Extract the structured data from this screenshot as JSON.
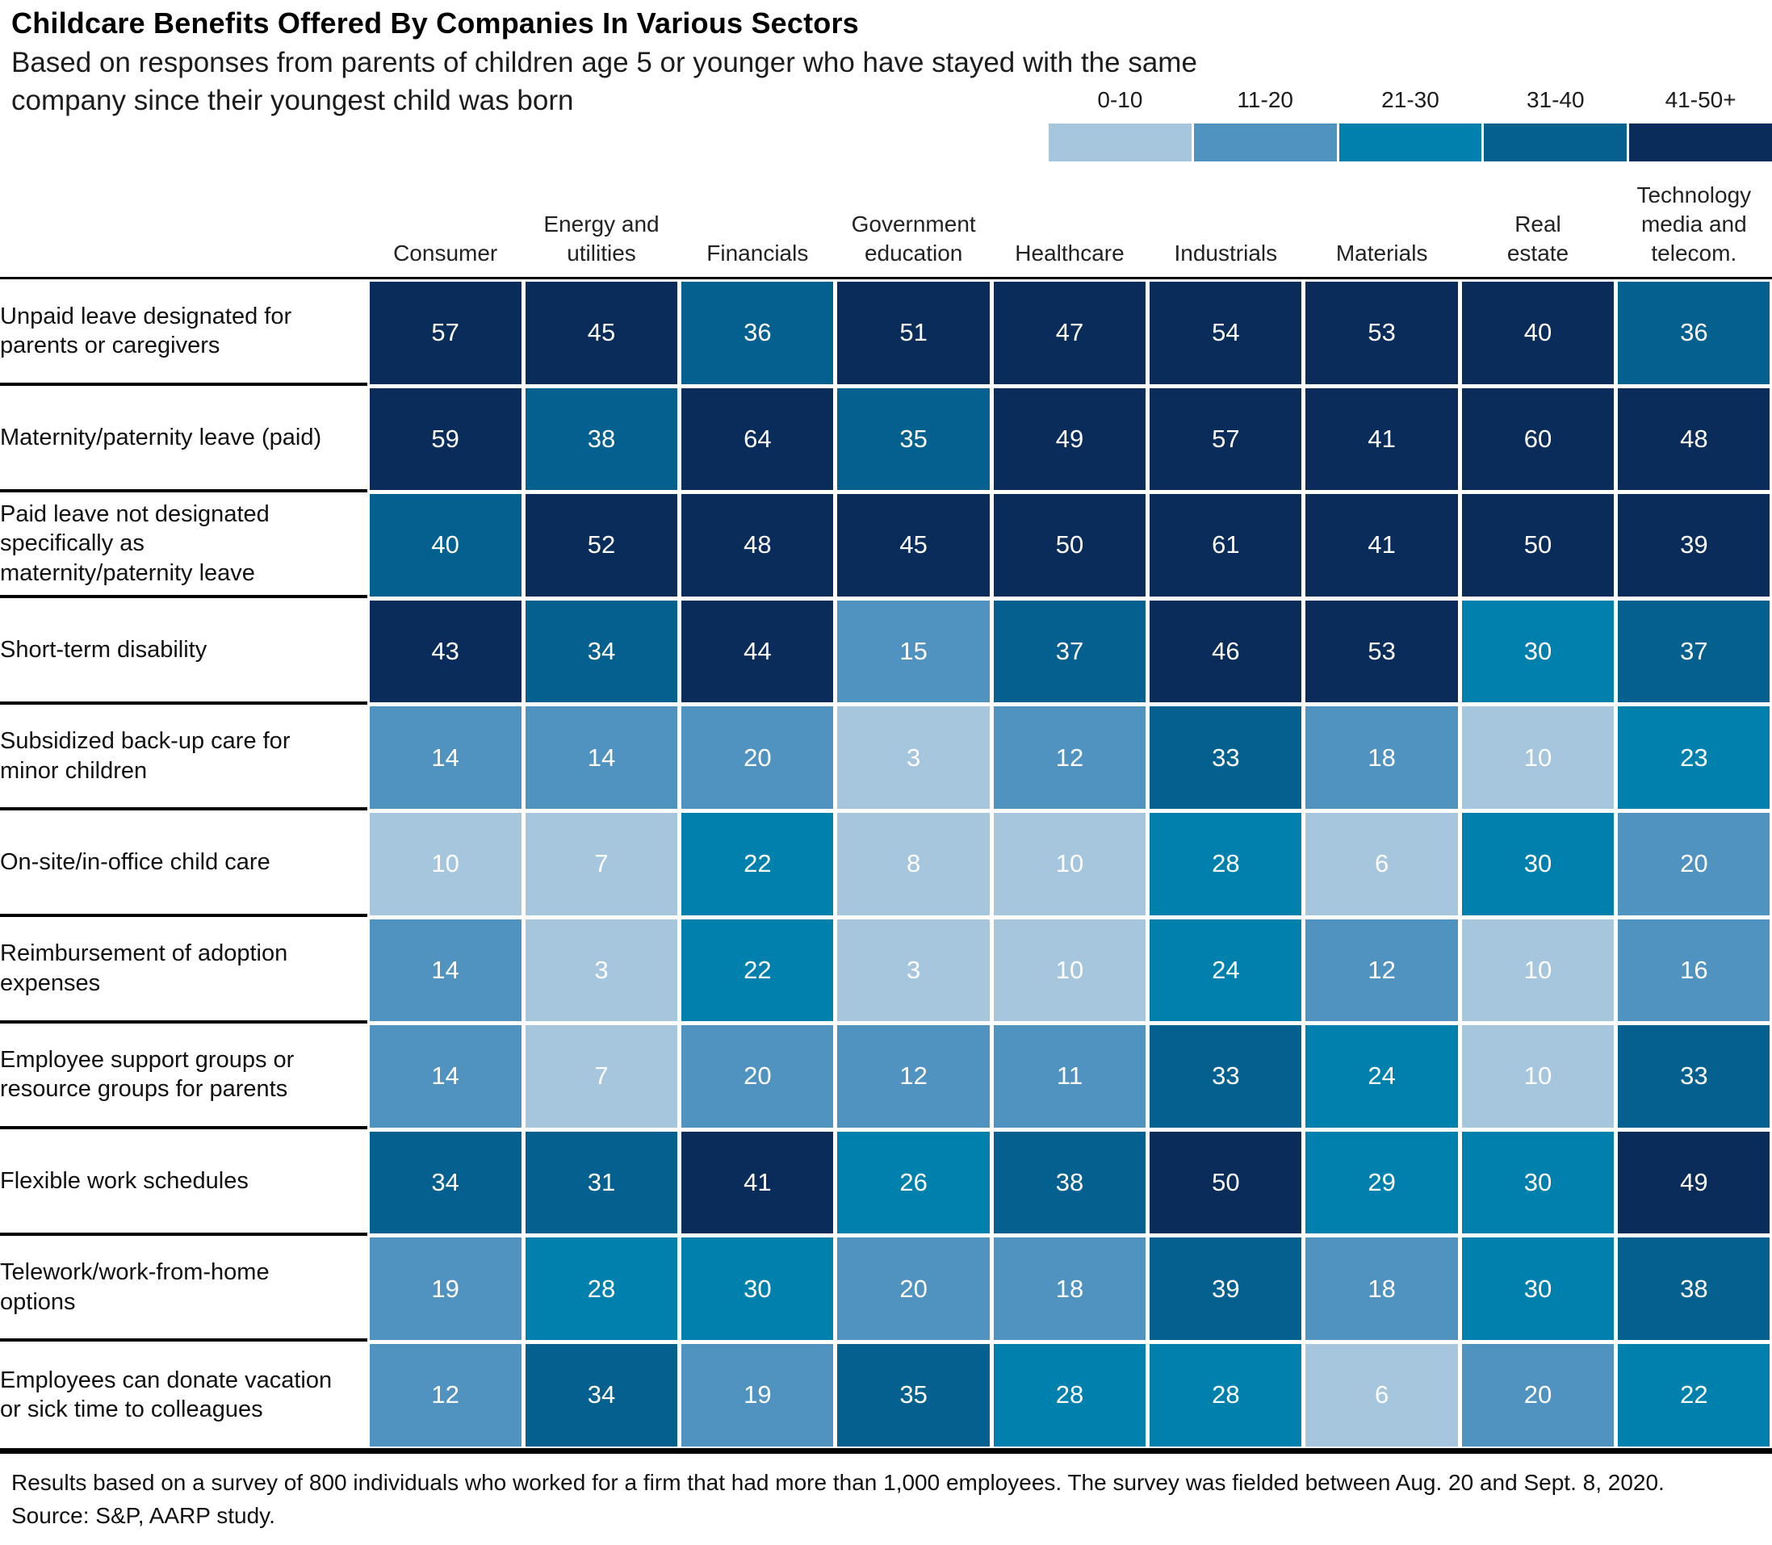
{
  "chart_data": {
    "type": "heatmap",
    "title": "Childcare Benefits Offered By Companies In Various Sectors",
    "subtitle": "Based on responses from parents of children age 5 or younger who have stayed with the same\ncompany since their youngest child was born",
    "columns": [
      "Consumer",
      "Energy and\nutilities",
      "Financials",
      "Government\neducation",
      "Healthcare",
      "Industrials",
      "Materials",
      "Real\nestate",
      "Technology\nmedia and\ntelecom."
    ],
    "rows": [
      {
        "label": "Unpaid leave designated for parents or caregivers",
        "values": [
          57,
          45,
          36,
          51,
          47,
          54,
          53,
          40,
          36
        ]
      },
      {
        "label": "Maternity/paternity leave (paid)",
        "values": [
          59,
          38,
          64,
          35,
          49,
          57,
          41,
          60,
          48
        ]
      },
      {
        "label": "Paid leave not designated specifically as maternity/paternity leave",
        "values": [
          40,
          52,
          48,
          45,
          50,
          61,
          41,
          50,
          39
        ]
      },
      {
        "label": "Short-term disability",
        "values": [
          43,
          34,
          44,
          15,
          37,
          46,
          53,
          30,
          37
        ]
      },
      {
        "label": "Subsidized back-up care for minor children",
        "values": [
          14,
          14,
          20,
          3,
          12,
          33,
          18,
          10,
          23
        ]
      },
      {
        "label": "On-site/in-office child care",
        "values": [
          10,
          7,
          22,
          8,
          10,
          28,
          6,
          30,
          20
        ]
      },
      {
        "label": "Reimbursement of adoption expenses",
        "values": [
          14,
          3,
          22,
          3,
          10,
          24,
          12,
          10,
          16
        ]
      },
      {
        "label": "Employee support groups or resource groups for parents",
        "values": [
          14,
          7,
          20,
          12,
          11,
          33,
          24,
          10,
          33
        ]
      },
      {
        "label": "Flexible work schedules",
        "values": [
          34,
          31,
          41,
          26,
          38,
          50,
          29,
          30,
          49
        ]
      },
      {
        "label": "Telework/work-from-home options",
        "values": [
          19,
          28,
          30,
          20,
          18,
          39,
          18,
          30,
          38
        ]
      },
      {
        "label": "Employees can donate vacation or sick time to colleagues",
        "values": [
          12,
          34,
          19,
          35,
          28,
          28,
          6,
          20,
          22
        ]
      }
    ],
    "legend": {
      "position": "top-right",
      "bucket_labels": [
        "0-10",
        "11-20",
        "21-30",
        "31-40",
        "41-50+"
      ],
      "bucket_colors": [
        "#a5c6dd",
        "#5193c0",
        "#0081ad",
        "#04608f",
        "#092c5a"
      ],
      "thresholds": [
        10,
        20,
        30,
        40
      ]
    },
    "color_overrides": [
      {
        "row": 0,
        "col": 7,
        "bucket": 4
      },
      {
        "row": 2,
        "col": 8,
        "bucket": 4
      }
    ],
    "value_text_color": "#ffffff",
    "grid": "white gutters between cells, black rules on row-label column"
  },
  "footnote": "Results based on a survey of 800 individuals who worked for a firm that had more than 1,000 employees. The survey was fielded between Aug. 20 and Sept. 8, 2020.",
  "source": "Source: S&P, AARP study."
}
